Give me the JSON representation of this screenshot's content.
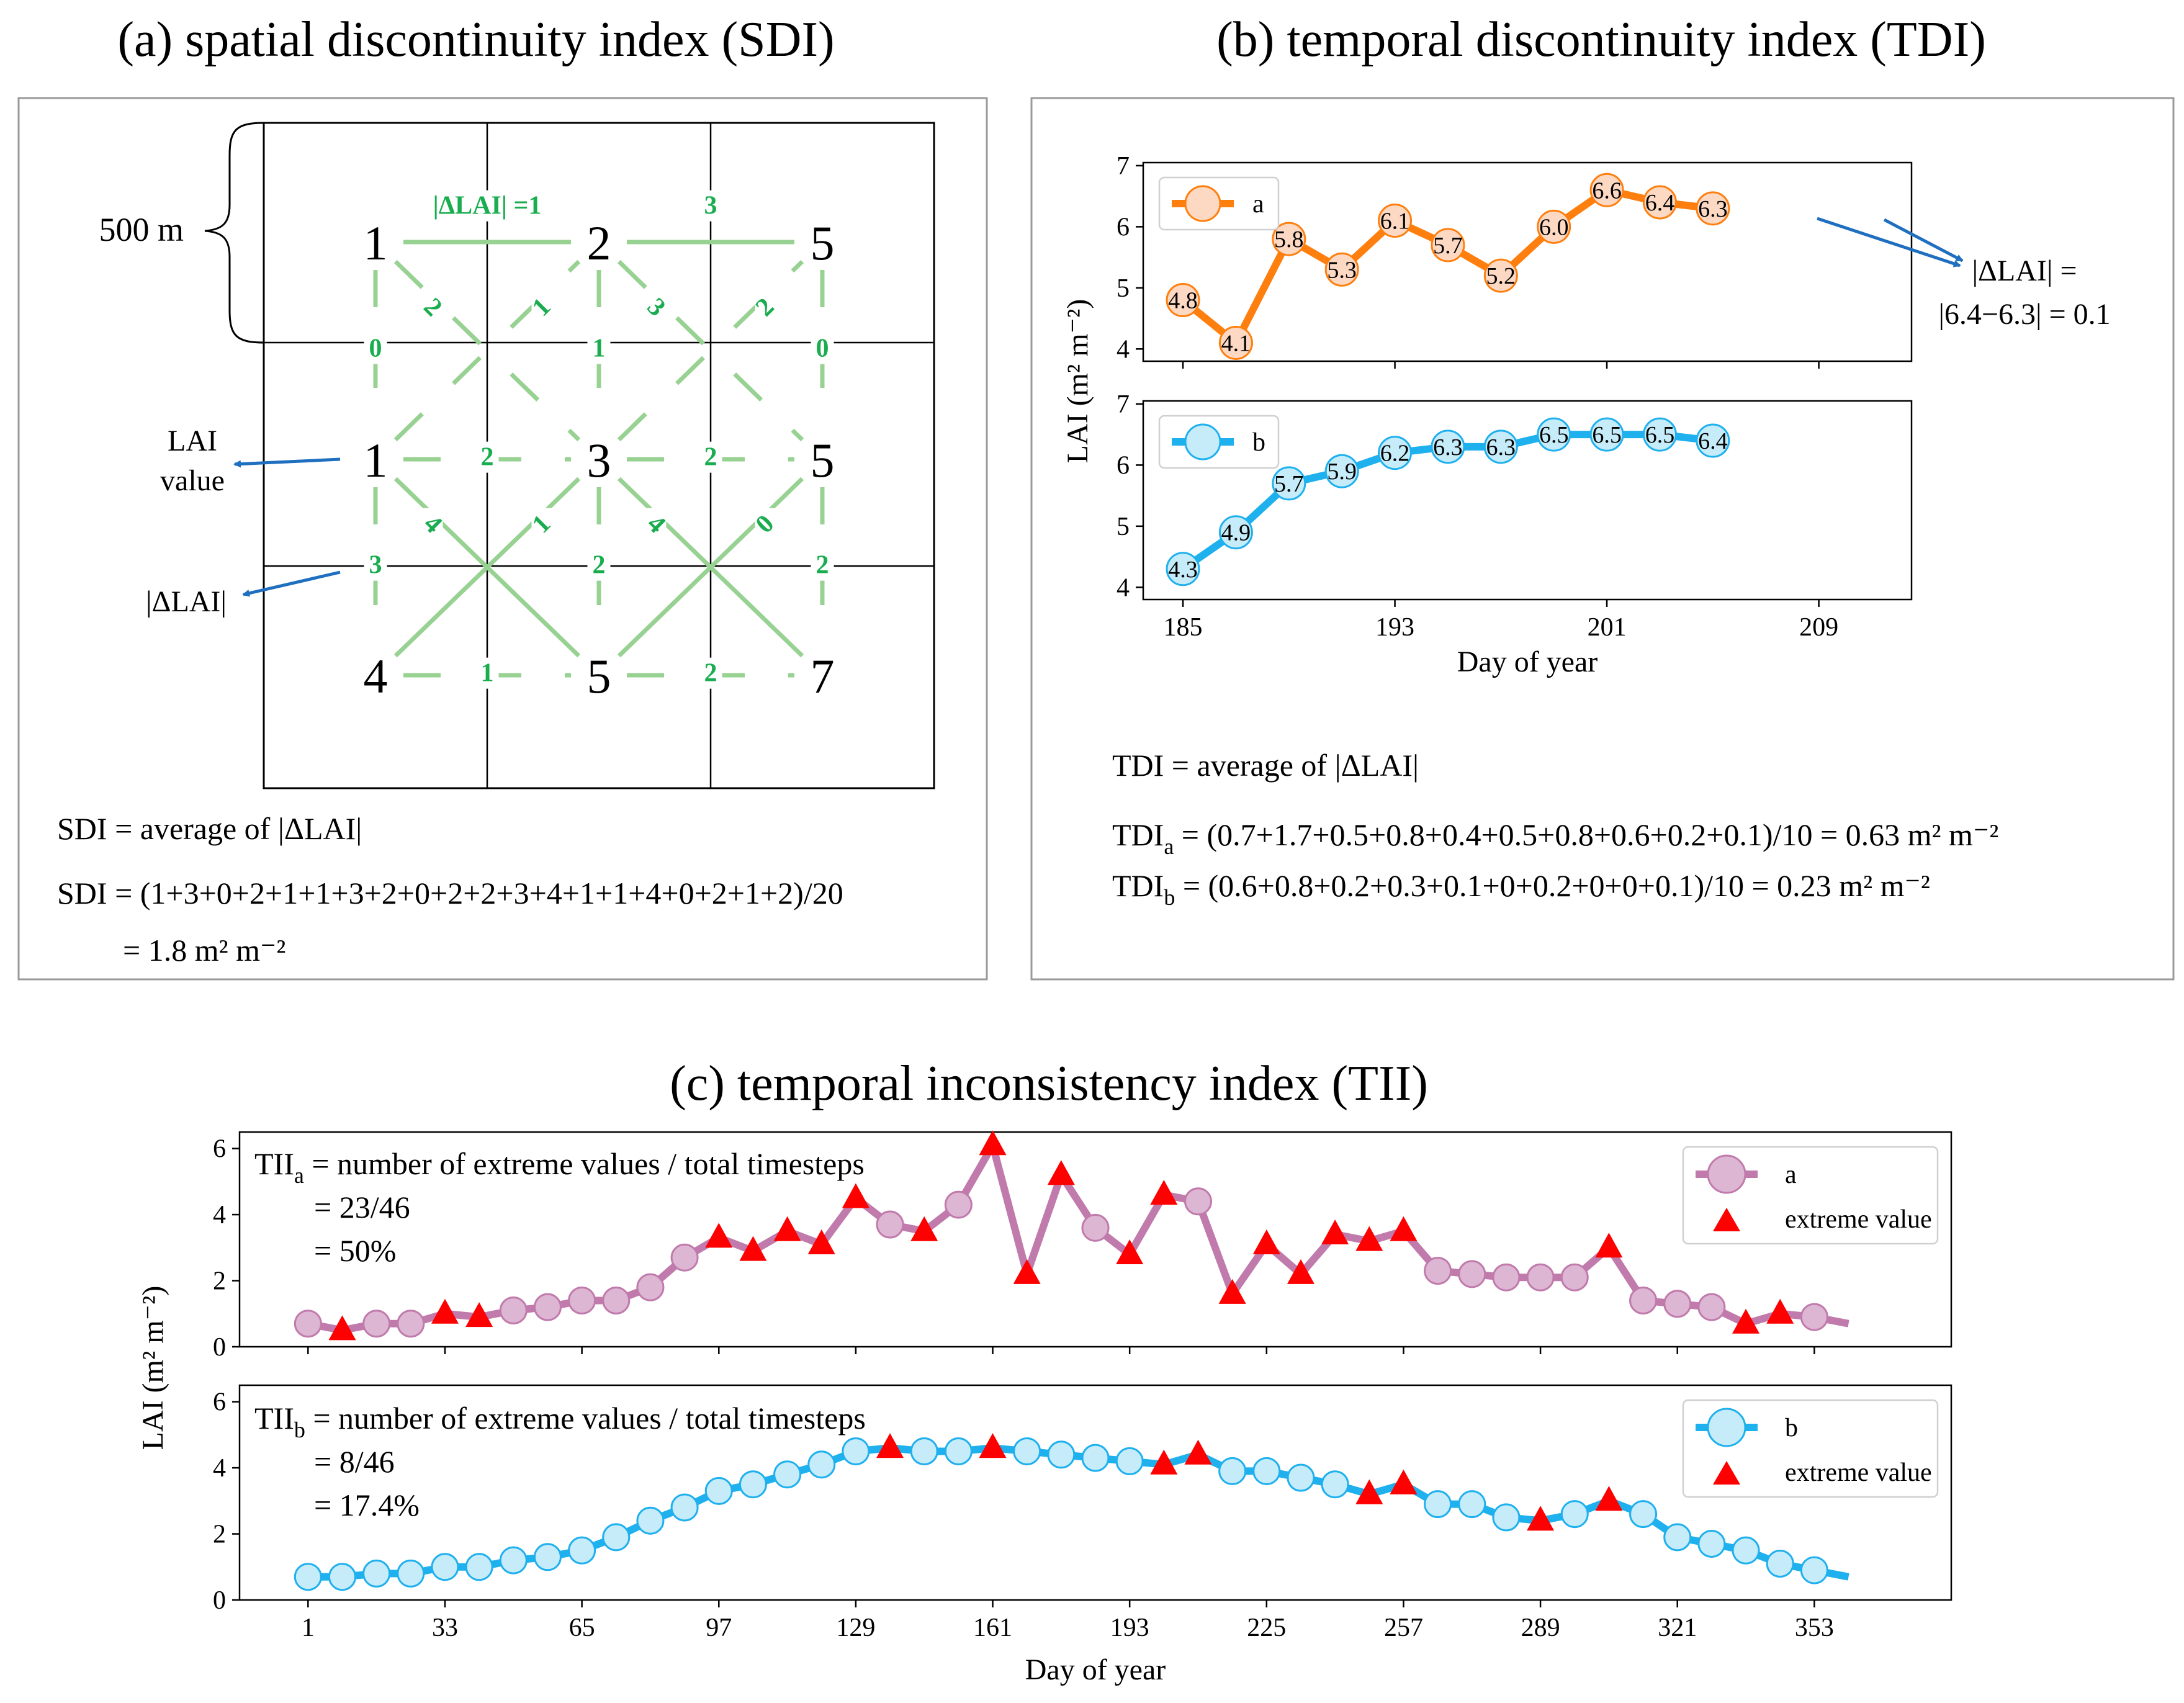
{
  "titles": {
    "a": "(a) spatial discontinuity index (SDI)",
    "b": "(b) temporal discontinuity index (TDI)",
    "c": "(c) temporal inconsistency index (TII)"
  },
  "panel_a": {
    "scale_label": "500 m",
    "lai_label_line1": "LAI",
    "lai_label_line2": "value",
    "dlai_label": "|ΔLAI|",
    "grid_values": [
      [
        "1",
        "2",
        "5"
      ],
      [
        "1",
        "3",
        "5"
      ],
      [
        "4",
        "5",
        "7"
      ]
    ],
    "horizontal_edges": [
      [
        "|ΔLAI| =1",
        "3"
      ],
      [
        "2",
        "2"
      ],
      [
        "1",
        "2"
      ]
    ],
    "vertical_edges": [
      [
        "0",
        "1",
        "0"
      ],
      [
        "3",
        "2",
        "2"
      ]
    ],
    "diagonal_edges": [
      {
        "down": "2",
        "up": "1"
      },
      {
        "down": "3",
        "up": "2"
      },
      {
        "down": "4",
        "up": "1"
      },
      {
        "down": "4",
        "up": "0"
      }
    ],
    "formula1": "SDI = average of |ΔLAI|",
    "formula2": "SDI = (1+3+0+2+1+1+3+2+0+2+2+3+4+1+1+4+0+2+1+2)/20",
    "formula3": "= 1.8 m² m⁻²"
  },
  "panel_b": {
    "annotation_line1": "|ΔLAI| =",
    "annotation_line2": "|6.4−6.3| = 0.1",
    "formula1": "TDI  = average of |ΔLAI|",
    "formula_a_sym": "TDI",
    "formula_a_sub": "a",
    "formula_a_rest": " = (0.7+1.7+0.5+0.8+0.4+0.5+0.8+0.6+0.2+0.1)/10 = 0.63 m² m⁻²",
    "formula_b_sym": "TDI",
    "formula_b_sub": "b",
    "formula_b_rest": " = (0.6+0.8+0.2+0.3+0.1+0+0.2+0+0+0.1)/10 = 0.23 m² m⁻²"
  },
  "panel_c": {
    "annot_a_sym": "TII",
    "annot_a_sub": "a",
    "annot_a_rest": " = number of extreme values / total timesteps",
    "annot_a_line2": "= 23/46",
    "annot_a_line3": "= 50%",
    "annot_b_sym": "TII",
    "annot_b_sub": "b",
    "annot_b_rest": " = number of extreme values / total timesteps",
    "annot_b_line2": "= 8/46",
    "annot_b_line3": "= 17.4%"
  },
  "colors": {
    "orange": "#ff7f0e",
    "orange_fill": "#fdd9c4",
    "blue": "#1fb0ee",
    "blue_fill": "#c6ecfa",
    "purple": "#c17aac",
    "purple_fill": "#dcb6d3",
    "extreme": "#ff0000",
    "edge_green": "#98d292",
    "edge_text": "#1aad4f"
  },
  "chart_data": [
    {
      "id": "tdi",
      "type": "line",
      "xlabel": "Day of year",
      "ylabel": "LAI (m² m⁻²)",
      "xticks": [
        185,
        193,
        201,
        209
      ],
      "xlim": [
        183.5,
        212.5
      ],
      "yticks": [
        4,
        5,
        6,
        7
      ],
      "ylim": [
        3.8,
        7.05
      ],
      "x": [
        185,
        187,
        189,
        191,
        193,
        195,
        197,
        199,
        201,
        203,
        205
      ],
      "series": [
        {
          "name": "a",
          "values": [
            4.8,
            4.1,
            5.8,
            5.3,
            6.1,
            5.7,
            5.2,
            6.0,
            6.6,
            6.4,
            6.3
          ],
          "labels": [
            "4.8",
            "4.1",
            "5.8",
            "5.3",
            "6.1",
            "5.7",
            "5.2",
            "6.0",
            "6.6",
            "6.4",
            "6.3"
          ]
        },
        {
          "name": "b",
          "values": [
            4.3,
            4.9,
            5.7,
            5.9,
            6.2,
            6.3,
            6.3,
            6.5,
            6.5,
            6.5,
            6.4
          ],
          "labels": [
            "4.3",
            "4.9",
            "5.7",
            "5.9",
            "6.2",
            "6.3",
            "6.3",
            "6.5",
            "6.5",
            "6.5",
            "6.4"
          ]
        }
      ]
    },
    {
      "id": "tii",
      "type": "line",
      "xlabel": "Day of year",
      "ylabel": "LAI (m² m⁻²)",
      "xticks": [
        1,
        33,
        65,
        97,
        129,
        161,
        193,
        225,
        257,
        289,
        321,
        353
      ],
      "xlim": [
        -15,
        385
      ],
      "yticks": [
        0,
        2,
        4,
        6
      ],
      "ylim": [
        0,
        6.5
      ],
      "x": [
        1,
        9,
        17,
        25,
        33,
        41,
        49,
        57,
        65,
        73,
        81,
        89,
        97,
        105,
        113,
        121,
        129,
        137,
        145,
        153,
        161,
        169,
        177,
        185,
        193,
        201,
        209,
        217,
        225,
        233,
        241,
        249,
        257,
        265,
        273,
        281,
        289,
        297,
        305,
        313,
        321,
        329,
        337,
        345,
        353,
        361
      ],
      "series": [
        {
          "name": "a",
          "legend_marker": "extreme value",
          "values": [
            0.7,
            0.5,
            0.7,
            0.7,
            1.0,
            0.9,
            1.1,
            1.2,
            1.4,
            1.4,
            1.8,
            2.7,
            3.3,
            2.9,
            3.5,
            3.1,
            4.5,
            3.7,
            3.5,
            4.3,
            6.1,
            2.2,
            5.2,
            3.6,
            2.8,
            4.6,
            4.4,
            1.6,
            3.1,
            2.2,
            3.4,
            3.2,
            3.5,
            2.3,
            2.2,
            2.1,
            2.1,
            2.1,
            3.0,
            1.4,
            1.3,
            1.2,
            0.7,
            1.0,
            0.9,
            0.7
          ],
          "extreme_indices": [
            1,
            4,
            5,
            12,
            13,
            14,
            15,
            16,
            18,
            20,
            21,
            22,
            24,
            25,
            27,
            28,
            29,
            30,
            31,
            32,
            38,
            42,
            43
          ]
        },
        {
          "name": "b",
          "legend_marker": "extreme value",
          "values": [
            0.7,
            0.7,
            0.8,
            0.8,
            1.0,
            1.0,
            1.2,
            1.3,
            1.5,
            1.9,
            2.4,
            2.8,
            3.3,
            3.5,
            3.8,
            4.1,
            4.5,
            4.6,
            4.5,
            4.5,
            4.6,
            4.5,
            4.4,
            4.3,
            4.2,
            4.1,
            4.4,
            3.9,
            3.9,
            3.7,
            3.5,
            3.2,
            3.5,
            2.9,
            2.9,
            2.5,
            2.4,
            2.6,
            3.0,
            2.6,
            1.9,
            1.7,
            1.5,
            1.1,
            0.9,
            0.7
          ],
          "extreme_indices": [
            17,
            20,
            25,
            26,
            31,
            32,
            36,
            38
          ]
        }
      ]
    }
  ]
}
